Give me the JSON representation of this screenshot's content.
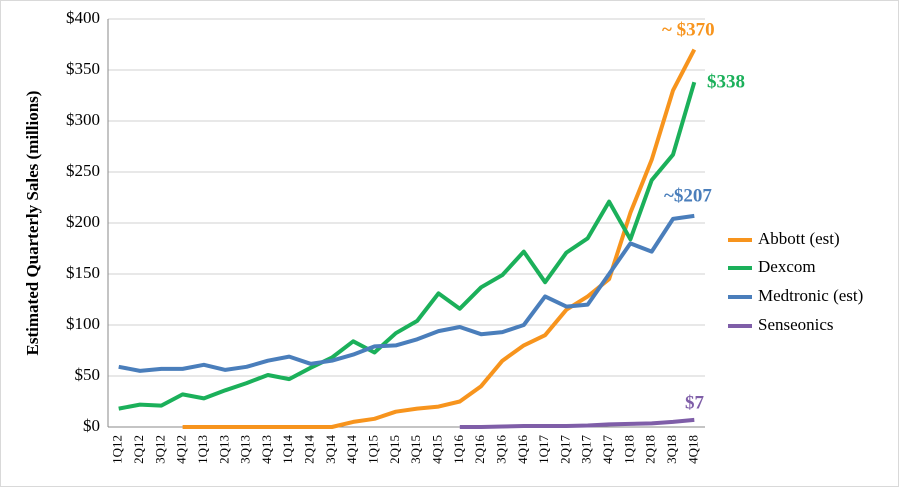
{
  "chart_data": {
    "type": "line",
    "ylabel": "Estimated Quarterly Sales (millions)",
    "categories": [
      "1Q12",
      "2Q12",
      "3Q12",
      "4Q12",
      "1Q13",
      "2Q13",
      "3Q13",
      "4Q13",
      "1Q14",
      "2Q14",
      "3Q14",
      "4Q14",
      "1Q15",
      "2Q15",
      "3Q15",
      "4Q15",
      "1Q16",
      "2Q16",
      "3Q16",
      "4Q16",
      "1Q17",
      "2Q17",
      "3Q17",
      "4Q17",
      "1Q18",
      "2Q18",
      "3Q18",
      "4Q18"
    ],
    "series": [
      {
        "name": "Abbott (est)",
        "color": "#f7941d",
        "values": [
          null,
          null,
          null,
          0,
          0,
          0,
          0,
          0,
          0,
          0,
          0,
          5,
          8,
          15,
          18,
          20,
          25,
          40,
          65,
          80,
          90,
          115,
          128,
          145,
          210,
          262,
          330,
          370
        ]
      },
      {
        "name": "Dexcom",
        "color": "#1bb05a",
        "values": [
          18,
          22,
          21,
          32,
          28,
          36,
          43,
          51,
          47,
          58,
          68,
          84,
          73,
          92,
          104,
          131,
          116,
          137,
          149,
          172,
          142,
          171,
          185,
          221,
          184,
          242,
          267,
          338
        ]
      },
      {
        "name": "Medtronic (est)",
        "color": "#4a7ebb",
        "values": [
          59,
          55,
          57,
          57,
          61,
          56,
          59,
          65,
          69,
          62,
          65,
          71,
          79,
          80,
          86,
          94,
          98,
          91,
          93,
          100,
          128,
          118,
          120,
          150,
          180,
          172,
          204,
          207
        ]
      },
      {
        "name": "Senseonics",
        "color": "#7f5ea8",
        "values": [
          null,
          null,
          null,
          null,
          null,
          null,
          null,
          null,
          null,
          null,
          null,
          null,
          null,
          null,
          null,
          null,
          0,
          0,
          0.5,
          1,
          1,
          1,
          1.5,
          2.5,
          3,
          3.5,
          5,
          7
        ]
      }
    ],
    "annotations": [
      "~ $370",
      "$338",
      "~$207",
      "$7"
    ],
    "ylim": [
      0,
      400
    ],
    "yticks": [
      {
        "value": 0,
        "label": "$0"
      },
      {
        "value": 50,
        "label": "$50"
      },
      {
        "value": 100,
        "label": "$100"
      },
      {
        "value": 150,
        "label": "$150"
      },
      {
        "value": 200,
        "label": "$200"
      },
      {
        "value": 250,
        "label": "$250"
      },
      {
        "value": 300,
        "label": "$300"
      },
      {
        "value": 350,
        "label": "$350"
      },
      {
        "value": 400,
        "label": "$400"
      }
    ],
    "grid": true,
    "legend": "right"
  }
}
